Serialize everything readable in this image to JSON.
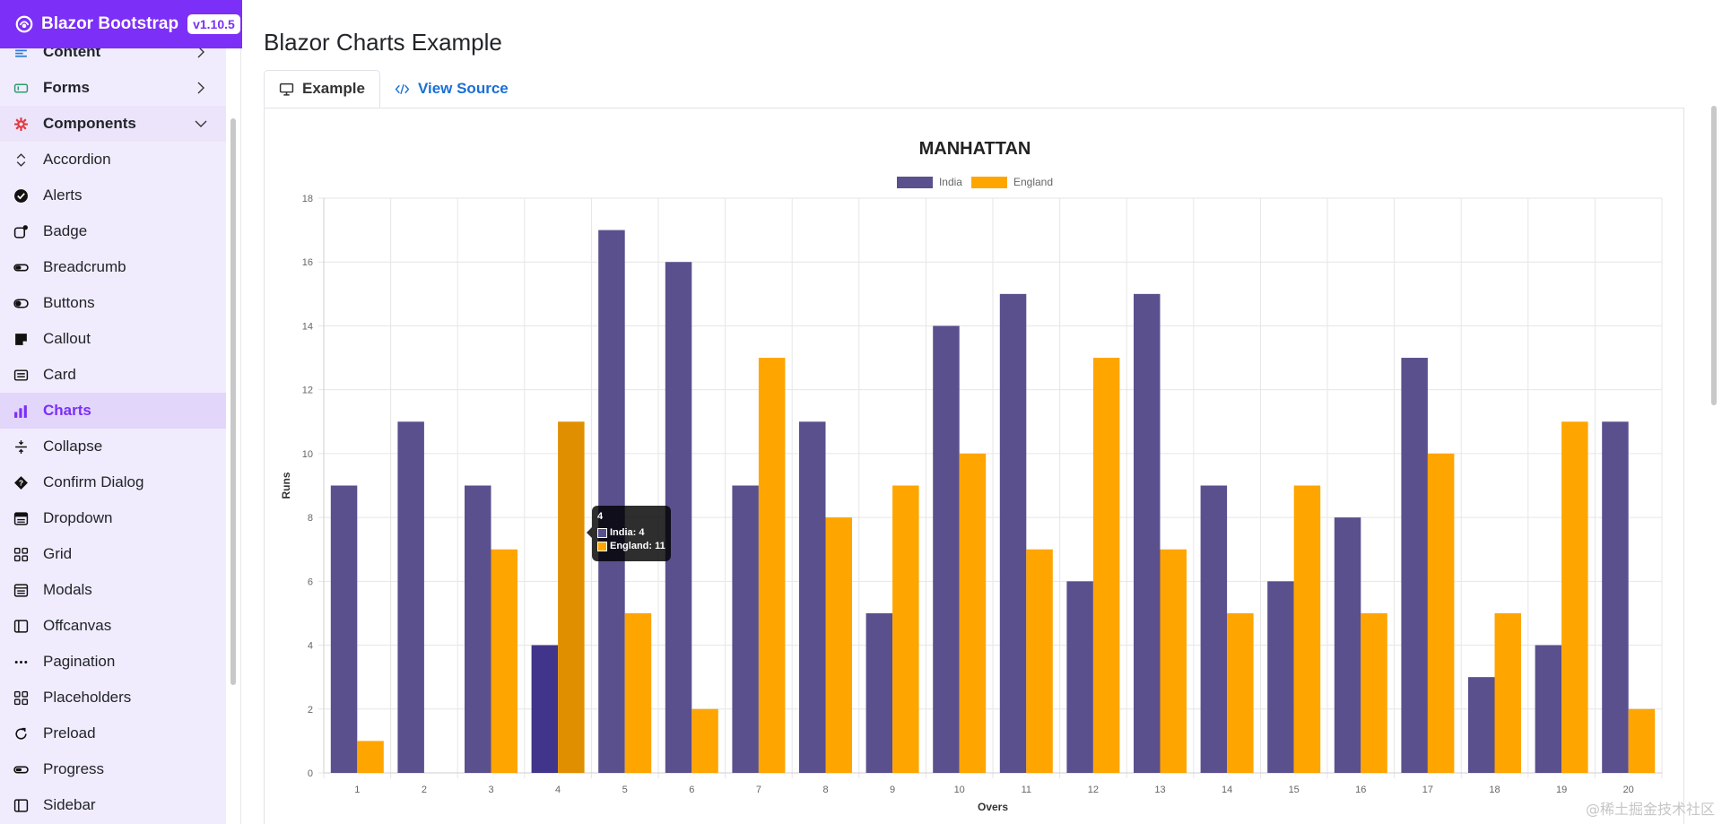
{
  "brand": {
    "name": "Blazor Bootstrap",
    "version": "v1.10.5"
  },
  "sidebar": {
    "items": [
      {
        "label": "Content",
        "icon": "content-icon",
        "group": true
      },
      {
        "label": "Forms",
        "icon": "forms-icon",
        "group": true
      },
      {
        "label": "Components",
        "icon": "gear-icon",
        "group": true,
        "expanded": true
      },
      {
        "label": "Accordion",
        "icon": "accordion-icon"
      },
      {
        "label": "Alerts",
        "icon": "check-circle-icon"
      },
      {
        "label": "Badge",
        "icon": "badge-icon"
      },
      {
        "label": "Breadcrumb",
        "icon": "breadcrumb-icon"
      },
      {
        "label": "Buttons",
        "icon": "toggle-icon"
      },
      {
        "label": "Callout",
        "icon": "sticky-icon"
      },
      {
        "label": "Card",
        "icon": "card-icon"
      },
      {
        "label": "Charts",
        "icon": "bar-chart-icon",
        "active": true
      },
      {
        "label": "Collapse",
        "icon": "collapse-icon"
      },
      {
        "label": "Confirm Dialog",
        "icon": "question-icon"
      },
      {
        "label": "Dropdown",
        "icon": "dropdown-icon"
      },
      {
        "label": "Grid",
        "icon": "grid-icon"
      },
      {
        "label": "Modals",
        "icon": "window-icon"
      },
      {
        "label": "Offcanvas",
        "icon": "sidebar-layout-icon"
      },
      {
        "label": "Pagination",
        "icon": "ellipsis-icon"
      },
      {
        "label": "Placeholders",
        "icon": "grid-icon"
      },
      {
        "label": "Preload",
        "icon": "refresh-icon"
      },
      {
        "label": "Progress",
        "icon": "progress-icon"
      },
      {
        "label": "Sidebar",
        "icon": "sidebar-layout-icon"
      }
    ]
  },
  "page": {
    "title": "Blazor Charts Example"
  },
  "tabs": [
    {
      "label": "Example",
      "icon": "monitor-icon",
      "active": true
    },
    {
      "label": "View Source",
      "icon": "code-icon",
      "active": false
    }
  ],
  "colors": {
    "india": "#5a508e",
    "england": "#ffa500",
    "india_hover": "#40358a",
    "england_hover": "#e08f00",
    "accent": "#7b2ff7"
  },
  "chart_data": {
    "type": "bar",
    "title": "MANHATTAN",
    "xlabel": "Overs",
    "ylabel": "Runs",
    "ylim": [
      0,
      18
    ],
    "yticks": [
      0,
      2,
      4,
      6,
      8,
      10,
      12,
      14,
      16,
      18
    ],
    "grid": true,
    "legend_placement": "top",
    "categories": [
      "1",
      "2",
      "3",
      "4",
      "5",
      "6",
      "7",
      "8",
      "9",
      "10",
      "11",
      "12",
      "13",
      "14",
      "15",
      "16",
      "17",
      "18",
      "19",
      "20"
    ],
    "series": [
      {
        "name": "India",
        "values": [
          9,
          11,
          9,
          4,
          17,
          16,
          9,
          11,
          5,
          14,
          15,
          6,
          15,
          9,
          6,
          8,
          13,
          3,
          4,
          11
        ]
      },
      {
        "name": "England",
        "values": [
          1,
          0,
          7,
          11,
          5,
          2,
          13,
          8,
          9,
          10,
          7,
          13,
          7,
          5,
          9,
          5,
          10,
          5,
          11,
          2
        ]
      }
    ],
    "tooltip": {
      "title": "4",
      "rows": [
        "India: 4",
        "England: 11"
      ]
    }
  },
  "watermark": "@稀土掘金技术社区"
}
